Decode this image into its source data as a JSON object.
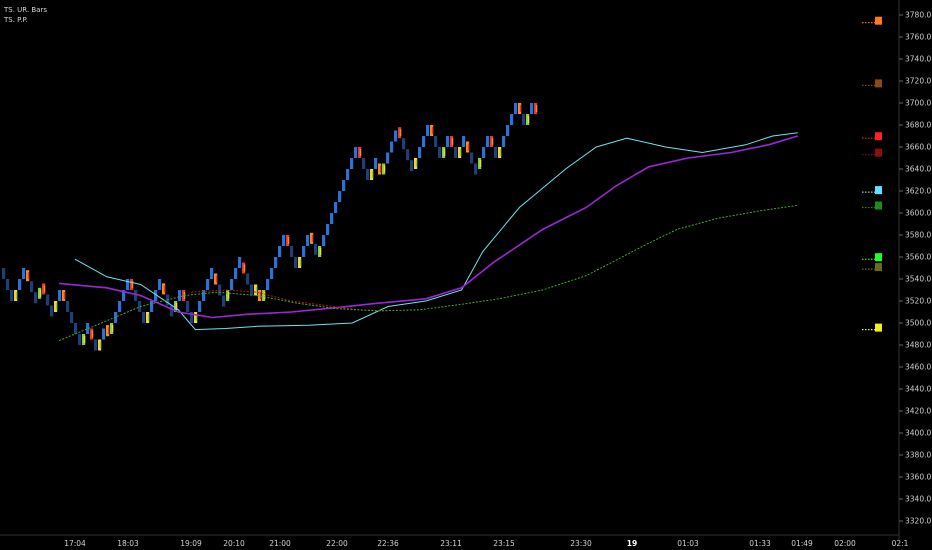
{
  "indicators": [
    {
      "label": "TS. UR. Bars"
    },
    {
      "label": "TS. P.P."
    }
  ],
  "colors": {
    "background": "#000000",
    "brick_up": "#2f6fd8",
    "brick_down": "#1f3f7a",
    "ma_fast": "#6fe3f0",
    "ma_mid": "#9c27d9",
    "ma_slow": "#3fae2a",
    "ma_red": "#b01818",
    "axis_text": "#cfcfcf"
  },
  "chart_data": {
    "type": "line",
    "title": "",
    "xlabel": "",
    "ylabel": "",
    "ylim": [
      3310,
      3790
    ],
    "price_axis_ticks": [
      "3320.0",
      "3340.0",
      "3360.0",
      "3380.0",
      "3400.0",
      "3420.0",
      "3440.0",
      "3460.0",
      "3480.0",
      "3500.0",
      "3520.0",
      "3540.0",
      "3560.0",
      "3580.0",
      "3600.0",
      "3620.0",
      "3640.0",
      "3660.0",
      "3680.0",
      "3700.0",
      "3720.0",
      "3740.0",
      "3760.0",
      "3780.0"
    ],
    "time_axis_labels": [
      {
        "x": 0,
        "label": "17:04"
      },
      {
        "x": 1,
        "label": "18:03"
      },
      {
        "x": 2,
        "label": "19:09"
      },
      {
        "x": 3,
        "label": "20:10"
      },
      {
        "x": 4,
        "label": "21:00"
      },
      {
        "x": 5,
        "label": "22:00"
      },
      {
        "x": 6,
        "label": "22:36"
      },
      {
        "x": 7,
        "label": "23:11"
      },
      {
        "x": 8,
        "label": "23:15"
      },
      {
        "x": 9,
        "label": "23:30"
      },
      {
        "x": 10,
        "label": "19",
        "bold": true
      },
      {
        "x": 11,
        "label": "01:03"
      },
      {
        "x": 12,
        "label": "01:33"
      },
      {
        "x": 13,
        "label": "01:49"
      },
      {
        "x": 14,
        "label": "02:00"
      },
      {
        "x": 15,
        "label": "02:1"
      }
    ],
    "brick_path": [
      3550,
      3520,
      3548,
      3522,
      3536,
      3510,
      3530,
      3480,
      3495,
      3475,
      3498,
      3490,
      3540,
      3500,
      3536,
      3510,
      3530,
      3500,
      3545,
      3520,
      3555,
      3525,
      3530,
      3520,
      3580,
      3550,
      3582,
      3560,
      3660,
      3630,
      3645,
      3635,
      3678,
      3640,
      3680,
      3650,
      3670,
      3650,
      3665,
      3640,
      3670,
      3650,
      3700,
      3680,
      3700,
      3690
    ],
    "series": [
      {
        "name": "",
        "color_key": "ma_fast",
        "points": [
          [
            0,
            3558
          ],
          [
            0.6,
            3542
          ],
          [
            1.2,
            3535
          ],
          [
            1.8,
            3512
          ],
          [
            2.1,
            3494
          ],
          [
            2.8,
            3495
          ],
          [
            3.5,
            3497
          ],
          [
            4.5,
            3498
          ],
          [
            5.3,
            3500
          ],
          [
            6.0,
            3515
          ],
          [
            6.6,
            3520
          ],
          [
            7.2,
            3530
          ],
          [
            7.6,
            3565
          ],
          [
            8.2,
            3605
          ],
          [
            8.8,
            3640
          ],
          [
            9.3,
            3660
          ],
          [
            9.9,
            3668
          ],
          [
            10.6,
            3660
          ],
          [
            11.2,
            3655
          ],
          [
            11.8,
            3662
          ],
          [
            12.3,
            3670
          ],
          [
            12.9,
            3673
          ]
        ]
      },
      {
        "name": "",
        "color_key": "ma_mid",
        "points": [
          [
            -0.3,
            3536
          ],
          [
            0.6,
            3532
          ],
          [
            1.2,
            3525
          ],
          [
            1.8,
            3510
          ],
          [
            2.5,
            3505
          ],
          [
            3.3,
            3508
          ],
          [
            4.2,
            3510
          ],
          [
            5.0,
            3514
          ],
          [
            5.8,
            3518
          ],
          [
            6.6,
            3522
          ],
          [
            7.2,
            3532
          ],
          [
            7.8,
            3555
          ],
          [
            8.5,
            3585
          ],
          [
            9.1,
            3605
          ],
          [
            9.7,
            3625
          ],
          [
            10.3,
            3642
          ],
          [
            11.0,
            3650
          ],
          [
            11.6,
            3655
          ],
          [
            12.2,
            3662
          ],
          [
            12.9,
            3670
          ]
        ]
      },
      {
        "name": "",
        "color_key": "ma_red",
        "points": [
          [
            2.0,
            3528
          ],
          [
            2.8,
            3530
          ],
          [
            3.5,
            3528
          ],
          [
            4.2,
            3520
          ],
          [
            4.8,
            3516
          ],
          [
            5.4,
            3512
          ],
          [
            6.0,
            3511
          ]
        ]
      },
      {
        "name": "",
        "color_key": "ma_slow",
        "points": [
          [
            -0.3,
            3484
          ],
          [
            0.5,
            3500
          ],
          [
            1.2,
            3515
          ],
          [
            1.9,
            3525
          ],
          [
            2.6,
            3528
          ],
          [
            3.5,
            3525
          ],
          [
            4.3,
            3518
          ],
          [
            5.0,
            3513
          ],
          [
            5.8,
            3511
          ],
          [
            6.5,
            3512
          ],
          [
            7.2,
            3517
          ],
          [
            7.9,
            3522
          ],
          [
            8.5,
            3530
          ],
          [
            9.1,
            3543
          ],
          [
            9.6,
            3555
          ],
          [
            10.2,
            3570
          ],
          [
            10.8,
            3585
          ],
          [
            11.4,
            3595
          ],
          [
            12.0,
            3602
          ],
          [
            12.9,
            3607
          ]
        ]
      }
    ],
    "level_markers": [
      {
        "price": 3773,
        "color": "#ff7a1a"
      },
      {
        "price": 3716,
        "color": "#8a4a10"
      },
      {
        "price": 3668,
        "color": "#ff2020"
      },
      {
        "price": 3653,
        "color": "#8a1010"
      },
      {
        "price": 3619,
        "color": "#66e0ff"
      },
      {
        "price": 3605,
        "color": "#1f8a1f"
      },
      {
        "price": 3558,
        "color": "#22ff22"
      },
      {
        "price": 3549,
        "color": "#6a6a1a"
      },
      {
        "price": 3494,
        "color": "#f0f020"
      }
    ]
  }
}
